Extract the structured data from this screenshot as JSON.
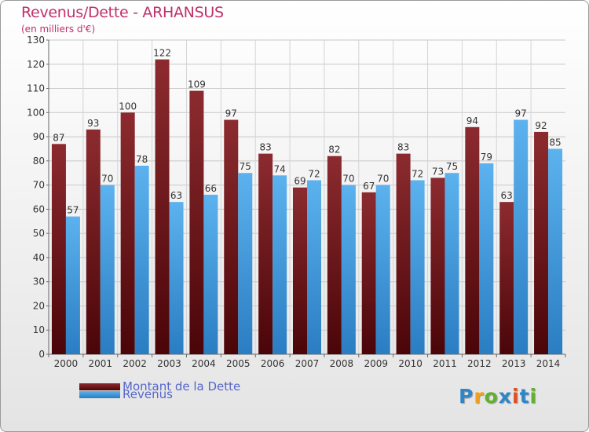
{
  "header": {
    "title": "Revenus/Dette - ARHANSUS",
    "subtitle": "(en milliers d'€)"
  },
  "chart_data": {
    "type": "bar",
    "title": "Revenus/Dette - ARHANSUS",
    "ylabel": "(en milliers d'€)",
    "ylim": [
      0,
      130
    ],
    "yticks": [
      0,
      10,
      20,
      30,
      40,
      50,
      60,
      70,
      80,
      90,
      100,
      110,
      120,
      130
    ],
    "grid": true,
    "legend_position": "bottom-left",
    "categories": [
      "2000",
      "2001",
      "2002",
      "2003",
      "2004",
      "2005",
      "2006",
      "2007",
      "2008",
      "2009",
      "2010",
      "2011",
      "2012",
      "2013",
      "2014"
    ],
    "series": [
      {
        "name": "Montant de la Dette",
        "color": "#7a1a1e",
        "values": [
          87,
          93,
          100,
          122,
          109,
          97,
          83,
          69,
          82,
          67,
          83,
          73,
          94,
          63,
          92
        ]
      },
      {
        "name": "Revenus",
        "color": "#3d9be0",
        "values": [
          57,
          70,
          78,
          63,
          66,
          75,
          74,
          72,
          70,
          70,
          72,
          75,
          79,
          97,
          85
        ]
      }
    ]
  },
  "legend": {
    "items": [
      "Montant de la Dette",
      "Revenus"
    ]
  },
  "logo": {
    "letters": [
      "P",
      "r",
      "o",
      "x",
      "i",
      "t",
      "i"
    ],
    "colors": [
      "#2e86c8",
      "#f0a020",
      "#62b030",
      "#2e86c8",
      "#e05020",
      "#2e86c8",
      "#62b030"
    ]
  }
}
